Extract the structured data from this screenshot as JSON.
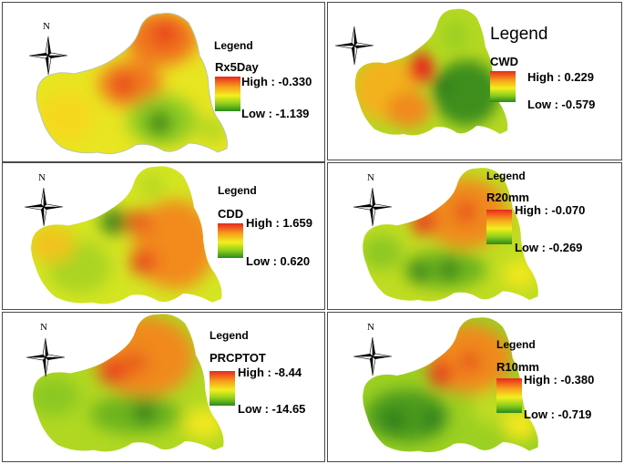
{
  "panels": [
    {
      "legend_title": "Legend",
      "variable": "Rx5Day",
      "high_label": "High : -0.330",
      "low_label": "Low : -1.139",
      "north": "N"
    },
    {
      "legend_title": "Legend",
      "variable": "CWD",
      "high_label": "High : 0.229",
      "low_label": "Low : -0.579",
      "north": ""
    },
    {
      "legend_title": "Legend",
      "variable": "CDD",
      "high_label": "High : 1.659",
      "low_label": "Low : 0.620",
      "north": "N"
    },
    {
      "legend_title": "Legend",
      "variable": "R20mm",
      "high_label": "High : -0.070",
      "low_label": "Low : -0.269",
      "north": "N"
    },
    {
      "legend_title": "Legend",
      "variable": "PRCPTOT",
      "high_label": "High : -8.44",
      "low_label": "Low : -14.65",
      "north": "N"
    },
    {
      "legend_title": "Legend",
      "variable": "R10mm",
      "high_label": "High : -0.380",
      "low_label": "Low : -0.719",
      "north": "N"
    }
  ],
  "colors": {
    "high": "#e8281e",
    "mid_high": "#f6a21c",
    "mid": "#f2ef1e",
    "mid_low": "#8fcf1c",
    "low": "#2a8a1c"
  }
}
